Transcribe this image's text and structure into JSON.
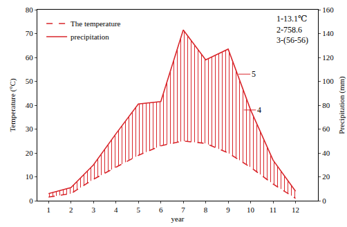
{
  "chart_data": {
    "type": "line",
    "x": [
      1,
      2,
      3,
      4,
      5,
      6,
      7,
      8,
      9,
      10,
      11,
      12
    ],
    "xlabel": "year",
    "ylabel": "Temperature (°C)",
    "y2label": "Precipitation (mm)",
    "series": [
      {
        "name": "The temperature",
        "color": "#d9262b",
        "line_style": "dashed",
        "values": [
          1.5,
          3,
          9,
          14,
          19,
          23,
          25,
          24,
          20,
          14,
          7,
          1
        ]
      },
      {
        "name": "precipitation",
        "color": "#d9262b",
        "line_style": "solid",
        "axis": "y2",
        "values": [
          6,
          11,
          30,
          56,
          81,
          83,
          143,
          118,
          127,
          76,
          34,
          8
        ]
      }
    ],
    "xlim": [
      0.5,
      13
    ],
    "xticks": [
      1,
      2,
      3,
      4,
      5,
      6,
      7,
      8,
      9,
      10,
      11,
      12
    ],
    "ylim": [
      0,
      80
    ],
    "yticks": [
      0,
      10,
      20,
      30,
      40,
      50,
      60,
      70,
      80
    ],
    "y2lim": [
      0,
      160
    ],
    "y2ticks": [
      0,
      20,
      40,
      60,
      80,
      100,
      120,
      140,
      160
    ],
    "legend": "upper left",
    "grid": false,
    "annotations": [
      "1-13.1℃",
      "2-758.6",
      "3-(56-56)",
      "5",
      "4"
    ]
  }
}
